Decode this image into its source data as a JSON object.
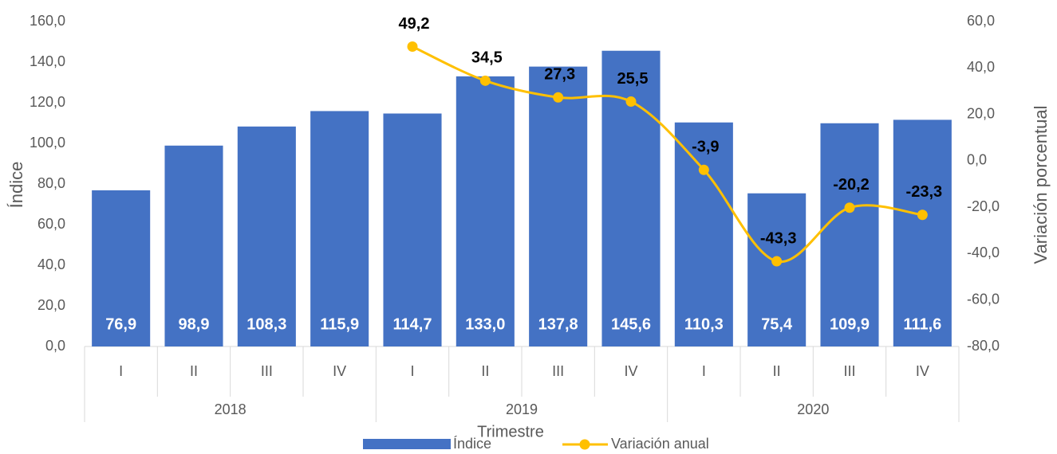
{
  "chart_data": {
    "type": "bar_line",
    "x_axis_label": "Trimestre",
    "y_axis_label": "Índice",
    "y2_axis_label": "Variación porcentual",
    "categories": [
      "I",
      "II",
      "III",
      "IV",
      "I",
      "II",
      "III",
      "IV",
      "I",
      "II",
      "III",
      "IV"
    ],
    "groups": [
      "2018",
      "2019",
      "2020"
    ],
    "series": [
      {
        "name": "Índice",
        "type": "bar",
        "color": "#4472c4",
        "values": [
          76.9,
          98.9,
          108.3,
          115.9,
          114.7,
          133.0,
          137.8,
          145.6,
          110.3,
          75.4,
          109.9,
          111.6
        ],
        "value_labels": [
          "76,9",
          "98,9",
          "108,3",
          "115,9",
          "114,7",
          "133,0",
          "137,8",
          "145,6",
          "110,3",
          "75,4",
          "109,9",
          "111,6"
        ]
      },
      {
        "name": "Variación anual",
        "type": "line",
        "axis": "y2",
        "color": "#ffc000",
        "values": [
          null,
          null,
          null,
          null,
          49.2,
          34.5,
          27.3,
          25.5,
          -3.9,
          -43.3,
          -20.2,
          -23.3
        ],
        "value_labels": [
          null,
          null,
          null,
          null,
          "49,2",
          "34,5",
          "27,3",
          "25,5",
          "-3,9",
          "-43,3",
          "-20,2",
          "-23,3"
        ]
      }
    ],
    "ylim": [
      0,
      160
    ],
    "yticks": [
      {
        "value": 0,
        "label": "0,0"
      },
      {
        "value": 20,
        "label": "20,0"
      },
      {
        "value": 40,
        "label": "40,0"
      },
      {
        "value": 60,
        "label": "60,0"
      },
      {
        "value": 80,
        "label": "80,0"
      },
      {
        "value": 100,
        "label": "100,0"
      },
      {
        "value": 120,
        "label": "120,0"
      },
      {
        "value": 140,
        "label": "140,0"
      },
      {
        "value": 160,
        "label": "160,0"
      }
    ],
    "y2lim": [
      -80,
      60
    ],
    "y2ticks": [
      {
        "value": -80,
        "label": "-80,0"
      },
      {
        "value": -60,
        "label": "-60,0"
      },
      {
        "value": -40,
        "label": "-40,0"
      },
      {
        "value": -20,
        "label": "-20,0"
      },
      {
        "value": 0,
        "label": "0,0"
      },
      {
        "value": 20,
        "label": "20,0"
      },
      {
        "value": 40,
        "label": "40,0"
      },
      {
        "value": 60,
        "label": "60,0"
      }
    ],
    "legend": "bottom"
  }
}
